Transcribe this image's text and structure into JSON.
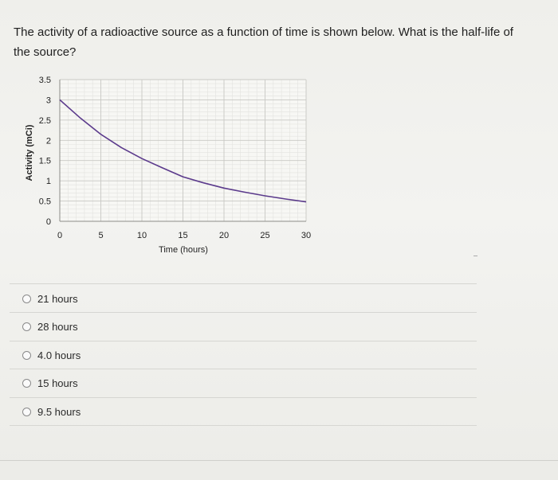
{
  "question": {
    "text": "The activity of a radioactive source as a function of time is shown below. What is the half-life of the source?"
  },
  "chart_data": {
    "type": "line",
    "xlabel": "Time (hours)",
    "ylabel": "Activity (mCi)",
    "x_ticks": [
      "0",
      "5",
      "10",
      "15",
      "20",
      "25",
      "30"
    ],
    "y_ticks": [
      "0",
      "0.5",
      "1",
      "1.5",
      "2",
      "2.5",
      "3",
      "3.5"
    ],
    "xlim": [
      0,
      30
    ],
    "ylim": [
      0,
      3.5
    ],
    "grid": true,
    "series_color": "#5b3a8c",
    "x": [
      0,
      2.5,
      5,
      7.5,
      10,
      12.5,
      15,
      17.5,
      20,
      22.5,
      25,
      27.5,
      30
    ],
    "y": [
      3.0,
      2.55,
      2.15,
      1.82,
      1.55,
      1.32,
      1.1,
      0.95,
      0.82,
      0.72,
      0.63,
      0.55,
      0.48
    ]
  },
  "options": [
    {
      "label": "21 hours"
    },
    {
      "label": "28 hours"
    },
    {
      "label": "4.0 hours"
    },
    {
      "label": "15 hours"
    },
    {
      "label": "9.5 hours"
    }
  ]
}
